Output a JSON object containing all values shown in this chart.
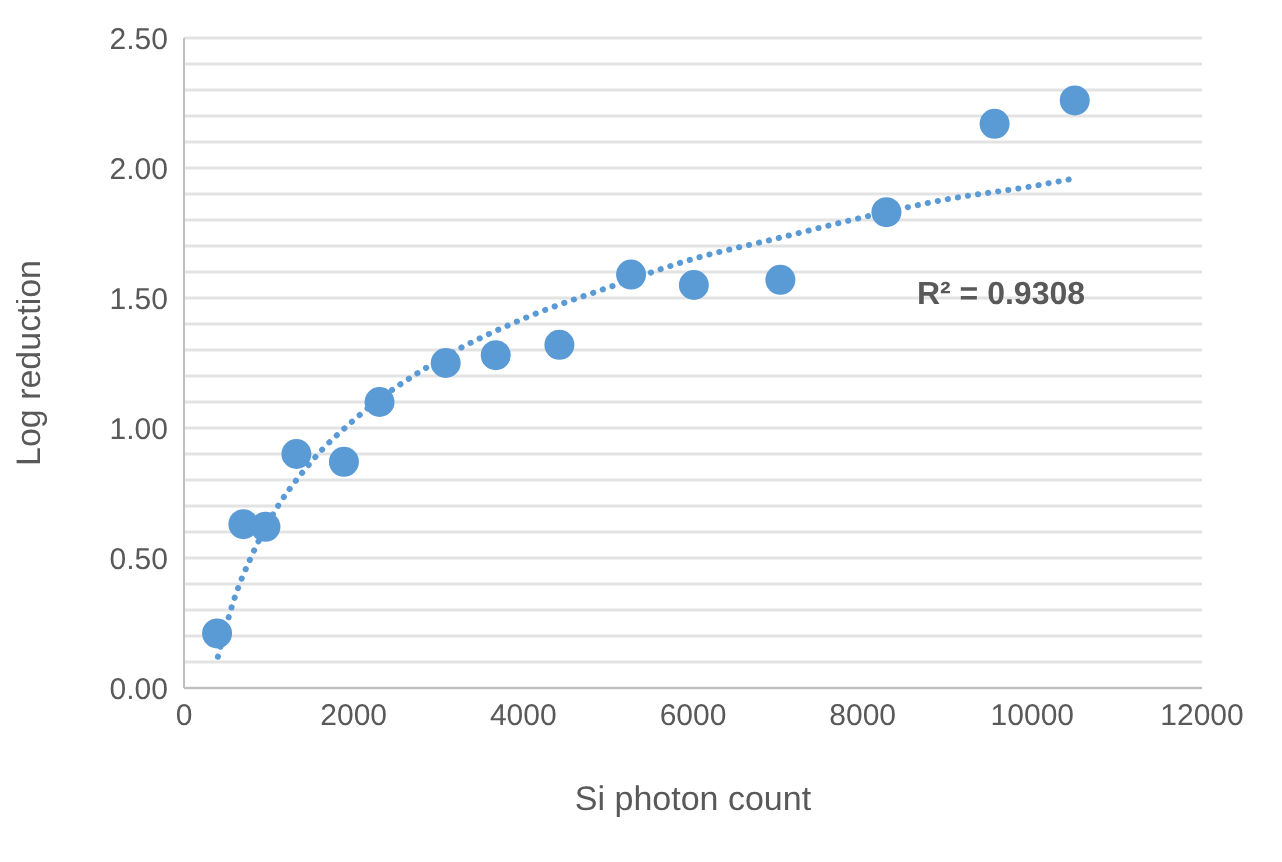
{
  "chart_data": {
    "type": "scatter",
    "xlabel": "Si photon count",
    "ylabel": "Log reduction",
    "series": [
      {
        "color": "#5b9bd5",
        "marker": "circle",
        "x": [
          390,
          700,
          960,
          1325,
          1885,
          2305,
          3085,
          3675,
          4425,
          5270,
          6010,
          7030,
          8280,
          9555,
          10500
        ],
        "values": [
          0.21,
          0.63,
          0.62,
          0.9,
          0.87,
          1.1,
          1.25,
          1.28,
          1.32,
          1.59,
          1.55,
          1.57,
          1.83,
          2.17,
          2.26
        ]
      },
      {
        "type": "line",
        "color": "#5b9bd5",
        "marker": "none",
        "line_style": "dotted",
        "x": [
          400,
          600,
          800,
          1000,
          1500,
          2000,
          3000,
          4000,
          5000,
          6000,
          7000,
          8000,
          9000,
          10000,
          10500
        ],
        "values": [
          0.12,
          0.35,
          0.51,
          0.64,
          0.87,
          1.03,
          1.26,
          1.42,
          1.54,
          1.65,
          1.73,
          1.81,
          1.88,
          1.93,
          1.96
        ]
      }
    ],
    "xlim": [
      0,
      12000
    ],
    "xticks": [
      0,
      2000,
      4000,
      6000,
      8000,
      10000,
      12000
    ],
    "ylim": [
      0,
      2.5
    ],
    "yticks": [
      {
        "value": 0,
        "label": "0.00"
      },
      {
        "value": 0.1,
        "label": null
      },
      {
        "value": 0.2,
        "label": null
      },
      {
        "value": 0.3,
        "label": null
      },
      {
        "value": 0.4,
        "label": null
      },
      {
        "value": 0.5,
        "label": "0.50"
      },
      {
        "value": 0.6,
        "label": null
      },
      {
        "value": 0.7,
        "label": null
      },
      {
        "value": 0.8,
        "label": null
      },
      {
        "value": 0.9,
        "label": null
      },
      {
        "value": 1,
        "label": "1.00"
      },
      {
        "value": 1.1,
        "label": null
      },
      {
        "value": 1.2,
        "label": null
      },
      {
        "value": 1.3,
        "label": null
      },
      {
        "value": 1.4,
        "label": null
      },
      {
        "value": 1.5,
        "label": "1.50"
      },
      {
        "value": 1.6,
        "label": null
      },
      {
        "value": 1.7,
        "label": null
      },
      {
        "value": 1.8,
        "label": null
      },
      {
        "value": 1.9,
        "label": null
      },
      {
        "value": 2,
        "label": "2.00"
      },
      {
        "value": 2.1,
        "label": null
      },
      {
        "value": 2.2,
        "label": null
      },
      {
        "value": 2.3,
        "label": null
      },
      {
        "value": 2.4,
        "label": null
      },
      {
        "value": 2.5,
        "label": "2.50"
      }
    ],
    "grid": "y",
    "legend": false,
    "annotations": [
      "R² = 0.9308"
    ]
  }
}
